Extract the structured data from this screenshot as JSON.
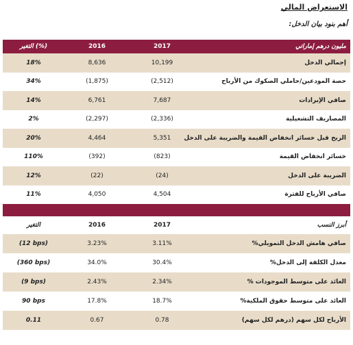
{
  "header": {
    "title": "الاستعراض المالي",
    "subtitle": "أهم بنود بيان الدخل:"
  },
  "table1": {
    "header": [
      "مليون درهم إماراتي",
      "2017",
      "2016",
      "التغير (%)"
    ],
    "rows": [
      [
        "إجمالي الدخل",
        "10,199",
        "8,636",
        "18%"
      ],
      [
        "حصة المودعين/حاملي الصكوك من الأرباح",
        "(2,512)",
        "(1,875)",
        "34%"
      ],
      [
        "صافي الإيرادات",
        "7,687",
        "6,761",
        "14%"
      ],
      [
        "المصاريف التشغيلية",
        "(2,336)",
        "(2,297)",
        "2%"
      ],
      [
        "الربح قبل خسائر انخفاض القيمة والضريبة على الدخل",
        "5,351",
        "4,464",
        "20%"
      ],
      [
        "خسائر انخفاض القيمة",
        "(823)",
        "(392)",
        "110%"
      ],
      [
        "الضريبة على الدخل",
        "(24)",
        "(22)",
        "12%"
      ],
      [
        "صافي الأرباح للفترة",
        "4,504",
        "4,050",
        "11%"
      ]
    ]
  },
  "table2": {
    "header": [
      "أبرز النسب",
      "2017",
      "2016",
      "التغير"
    ],
    "rows": [
      [
        "صافي هامش الدخل التمويلي%",
        "3.11%",
        "3.23%",
        "(12 bps)"
      ],
      [
        "معدل الكلفة إلى الدخل%",
        "30.4%",
        "34.0%",
        "(360 bps)"
      ],
      [
        "العائد على متوسط الموجودات %",
        "2.34%",
        "2.43%",
        "(9 bps)"
      ],
      [
        "العائد على متوسط حقوق الملكية%",
        "18.7%",
        "17.8%",
        "90 bps"
      ],
      [
        "الأرباح لكل سهم (درهم لكل سهم)",
        "0.78",
        "0.67",
        "0.11"
      ]
    ]
  }
}
